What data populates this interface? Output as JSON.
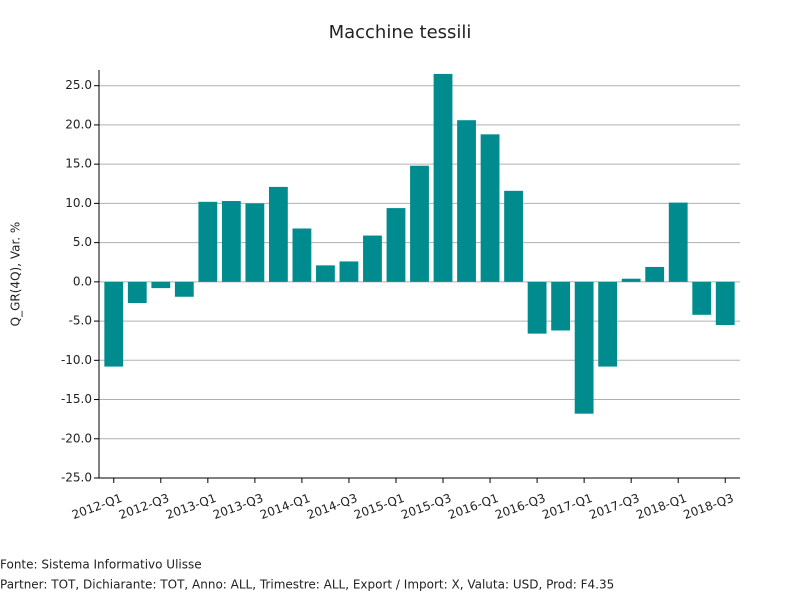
{
  "chart_data": {
    "type": "bar",
    "title": "Macchine tessili",
    "y_label": "Q_GR(4Q), Var. %",
    "categories": [
      "2012-Q1",
      null,
      "2012-Q3",
      null,
      "2013-Q1",
      null,
      "2013-Q3",
      null,
      "2014-Q1",
      null,
      "2014-Q3",
      null,
      "2015-Q1",
      null,
      "2015-Q3",
      null,
      "2016-Q1",
      null,
      "2016-Q3",
      null,
      "2017-Q1",
      null,
      "2017-Q3",
      null,
      "2018-Q1",
      null,
      "2018-Q3"
    ],
    "values": [
      -10.8,
      -2.7,
      -0.8,
      -1.9,
      10.2,
      10.3,
      10.0,
      12.1,
      6.8,
      2.1,
      2.6,
      5.9,
      9.4,
      14.8,
      26.5,
      20.6,
      18.8,
      11.6,
      -6.6,
      -6.2,
      -16.8,
      -10.8,
      0.4,
      1.9,
      10.1,
      -4.2,
      -5.5
    ],
    "color": "#008c8f",
    "ylim": [
      -25,
      27
    ],
    "yticks": [
      {
        "value": -25,
        "label": "-25.0"
      },
      {
        "value": -20,
        "label": "-20.0"
      },
      {
        "value": -15,
        "label": "-15.0"
      },
      {
        "value": -10,
        "label": "-10.0"
      },
      {
        "value": -5,
        "label": "-5.0"
      },
      {
        "value": 0,
        "label": "0.0"
      },
      {
        "value": 5,
        "label": "5.0"
      },
      {
        "value": 10,
        "label": "10.0"
      },
      {
        "value": 15,
        "label": "15.0"
      },
      {
        "value": 20,
        "label": "20.0"
      },
      {
        "value": 25,
        "label": "25.0"
      }
    ],
    "grid": true,
    "footnotes": [
      "Fonte: Sistema Informativo Ulisse",
      "Partner: TOT, Dichiarante: TOT, Anno: ALL, Trimestre: ALL, Export / Import: X, Valuta: USD, Prod: F4.35"
    ]
  }
}
